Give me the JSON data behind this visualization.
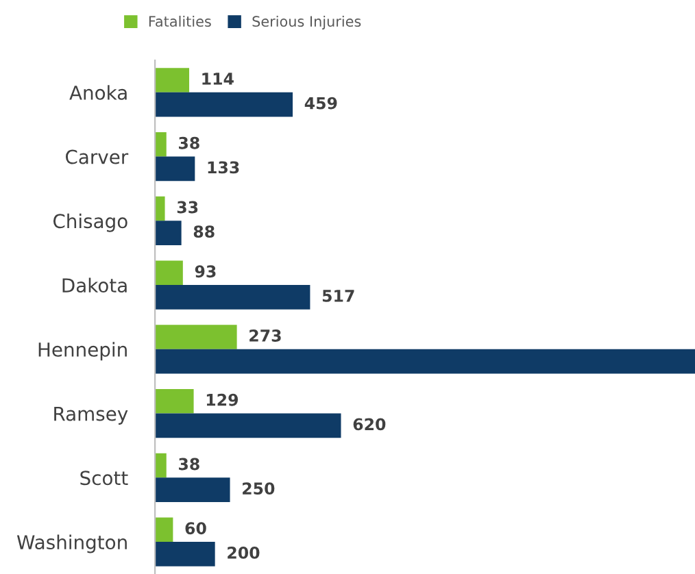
{
  "chart_data": {
    "type": "bar",
    "orientation": "horizontal",
    "categories": [
      "Anoka",
      "Carver",
      "Chisago",
      "Dakota",
      "Hennepin",
      "Ramsey",
      "Scott",
      "Washington"
    ],
    "series": [
      {
        "name": "Fatalities",
        "color": "#7cc12f",
        "values": [
          114,
          38,
          33,
          93,
          273,
          129,
          38,
          60
        ]
      },
      {
        "name": "Serious Injuries",
        "color": "#0f3b66",
        "values": [
          459,
          133,
          88,
          517,
          1800,
          620,
          250,
          200
        ],
        "value_labels": [
          "459",
          "133",
          "88",
          "517",
          null,
          "620",
          "250",
          "200"
        ]
      }
    ],
    "data_labels": true,
    "legend": "top",
    "grid": false
  }
}
